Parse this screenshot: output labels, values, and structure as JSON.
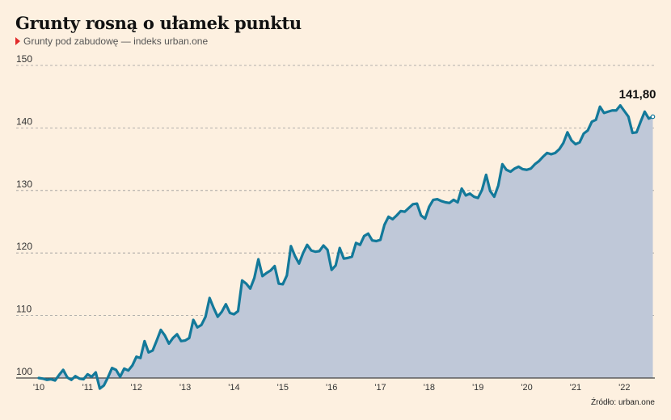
{
  "header": {
    "title": "Grunty rosną o ułamek punktu",
    "subtitle": "Grunty pod zabudowę — indeks urban.one"
  },
  "source": "Źródło: urban.one",
  "colors": {
    "background": "#fdf0e0",
    "line": "#13799a",
    "area": "#bfc8d8",
    "grid": "#9a9a9a",
    "marker": "#e12b2b"
  },
  "chart_data": {
    "type": "area",
    "ylim": [
      100,
      150
    ],
    "yticks": [
      100,
      110,
      120,
      130,
      140,
      150
    ],
    "xticks": [
      "'10",
      "'11",
      "'12",
      "'13",
      "'14",
      "'15",
      "'16",
      "'17",
      "'18",
      "'19",
      "'20",
      "'21",
      "'22"
    ],
    "x_start": "2010-01",
    "frequency": "monthly",
    "end_label": "141,80",
    "grid": "horizontal dashed",
    "series": [
      {
        "values": [
          100.0,
          99.9,
          99.7,
          99.8,
          99.6,
          100.5,
          101.3,
          100.1,
          99.7,
          100.3,
          99.9,
          99.8,
          100.6,
          100.2,
          100.9,
          98.3,
          98.8,
          100.1,
          101.6,
          101.3,
          100.2,
          101.5,
          101.2,
          102.0,
          103.4,
          103.2,
          105.9,
          104.1,
          104.4,
          106.0,
          107.7,
          106.8,
          105.5,
          106.4,
          107.0,
          105.9,
          106.0,
          106.4,
          109.3,
          108.1,
          108.5,
          109.8,
          112.8,
          111.2,
          109.8,
          110.6,
          111.8,
          110.4,
          110.2,
          110.7,
          115.6,
          115.1,
          114.3,
          116.0,
          119.0,
          116.3,
          116.8,
          117.2,
          117.9,
          115.1,
          115.0,
          116.4,
          121.1,
          119.5,
          118.3,
          120.0,
          121.3,
          120.4,
          120.2,
          120.3,
          121.2,
          120.5,
          117.3,
          118.0,
          120.8,
          119.1,
          119.2,
          119.4,
          121.6,
          121.3,
          122.7,
          123.1,
          122.0,
          121.9,
          122.1,
          124.5,
          125.8,
          125.4,
          126.0,
          126.7,
          126.6,
          127.2,
          127.8,
          127.9,
          126.0,
          125.5,
          127.4,
          128.5,
          128.6,
          128.3,
          128.1,
          128.0,
          128.5,
          128.1,
          130.3,
          129.2,
          129.5,
          129.0,
          128.8,
          130.1,
          132.5,
          129.9,
          129.0,
          130.8,
          134.2,
          133.3,
          133.0,
          133.5,
          133.8,
          133.4,
          133.3,
          133.5,
          134.2,
          134.7,
          135.4,
          136.0,
          135.8,
          136.0,
          136.6,
          137.6,
          139.3,
          138.0,
          137.4,
          137.7,
          139.1,
          139.6,
          141.0,
          141.3,
          143.4,
          142.4,
          142.6,
          142.8,
          142.8,
          143.6,
          142.7,
          141.8,
          139.2,
          139.3,
          141.0,
          142.6,
          141.5,
          141.8
        ]
      }
    ]
  }
}
